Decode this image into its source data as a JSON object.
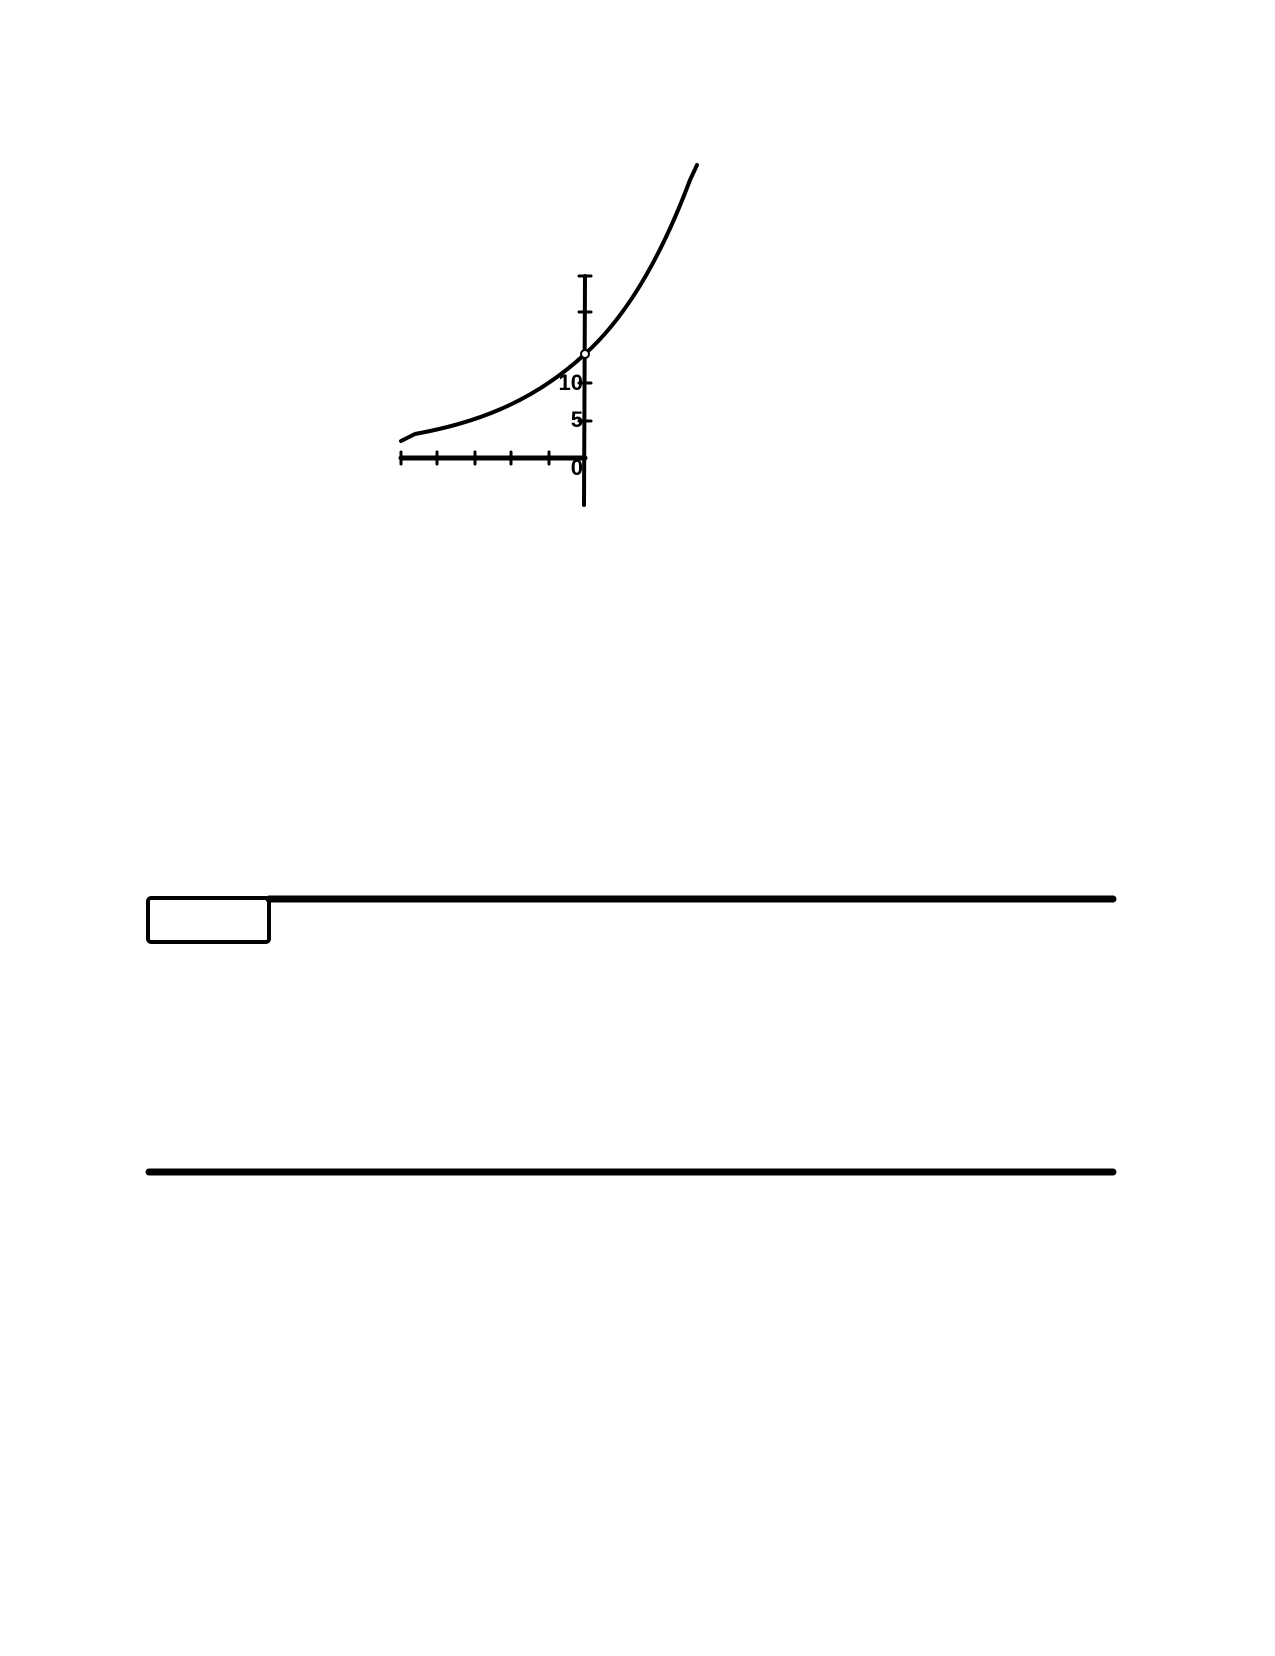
{
  "graph": {
    "y_labels": [
      "10",
      "5",
      "0"
    ]
  }
}
